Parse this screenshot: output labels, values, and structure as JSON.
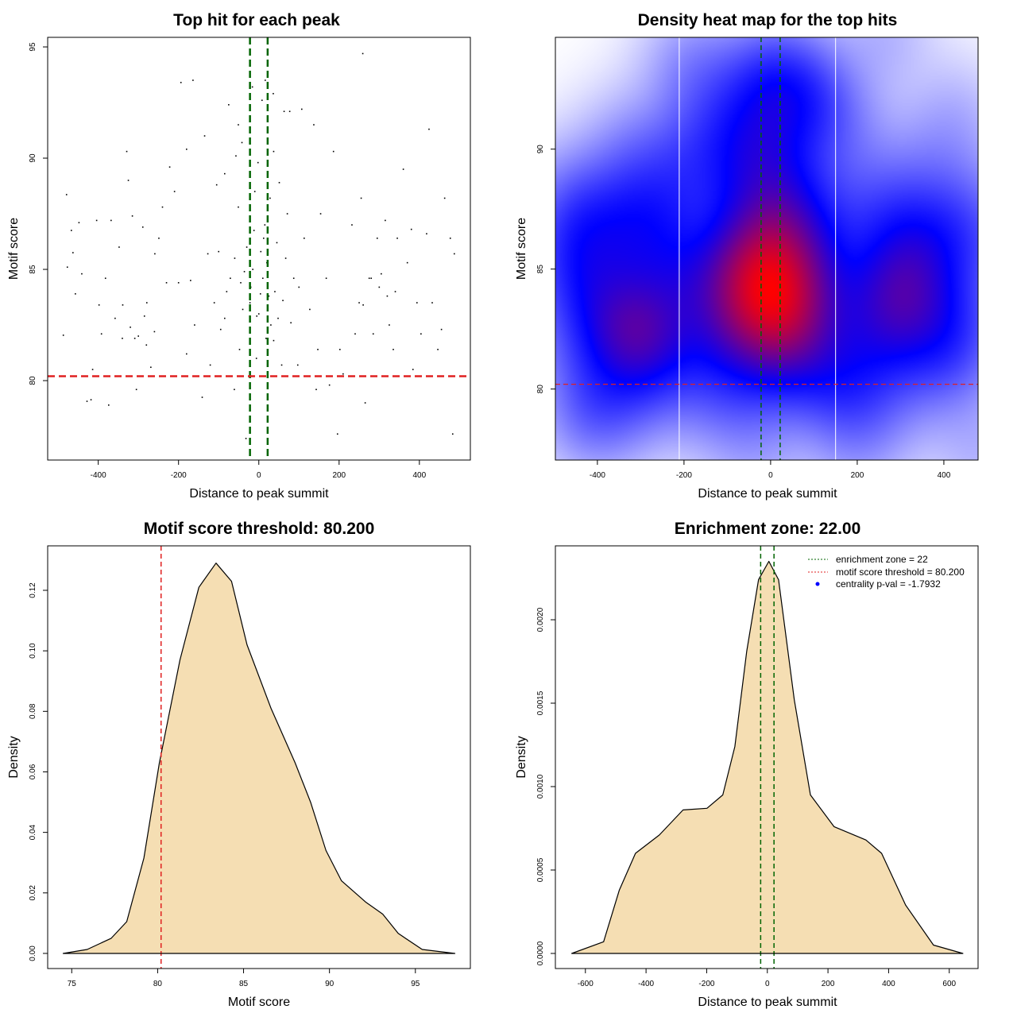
{
  "chart_data": [
    {
      "type": "scatter",
      "title": "Top hit for each peak",
      "xlabel": "Distance to peak summit",
      "ylabel": "Motif score",
      "xlim": [
        -526,
        527
      ],
      "ylim": [
        76.43,
        95.43
      ],
      "xticks": [
        -400,
        -200,
        0,
        200,
        400
      ],
      "yticks": [
        80,
        85,
        90,
        95
      ],
      "vlines": [
        -22,
        22
      ],
      "vline_color": "#006400",
      "hline": 80.2,
      "hline_color": "#e02020",
      "points": [
        [
          -479,
          88.36
        ],
        [
          -487,
          82.04
        ],
        [
          -477,
          85.1
        ],
        [
          -463,
          85.75
        ],
        [
          -467,
          86.75
        ],
        [
          -448,
          87.1
        ],
        [
          -457,
          83.9
        ],
        [
          -441,
          84.8
        ],
        [
          -428,
          79.07
        ],
        [
          -418,
          79.14
        ],
        [
          -414,
          80.5
        ],
        [
          -404,
          87.2
        ],
        [
          -398,
          83.4
        ],
        [
          -392,
          82.1
        ],
        [
          -382,
          84.6
        ],
        [
          -374,
          78.9
        ],
        [
          -368,
          87.2
        ],
        [
          -358,
          82.8
        ],
        [
          -339,
          83.4
        ],
        [
          -329,
          90.3
        ],
        [
          -325,
          89.0
        ],
        [
          -315,
          87.4
        ],
        [
          -309,
          81.9
        ],
        [
          -305,
          79.6
        ],
        [
          -289,
          86.9
        ],
        [
          -285,
          82.9
        ],
        [
          -279,
          83.5
        ],
        [
          -269,
          80.6
        ],
        [
          -259,
          85.7
        ],
        [
          -249,
          86.4
        ],
        [
          -240,
          87.8
        ],
        [
          -230,
          84.4
        ],
        [
          -222,
          89.6
        ],
        [
          -210,
          88.5
        ],
        [
          -200,
          84.4
        ],
        [
          -194,
          93.4
        ],
        [
          -164,
          93.5
        ],
        [
          -180,
          90.4
        ],
        [
          -170,
          84.5
        ],
        [
          -160,
          82.5
        ],
        [
          -141,
          79.25
        ],
        [
          -135,
          91.0
        ],
        [
          -127,
          85.7
        ],
        [
          -121,
          80.7
        ],
        [
          -111,
          83.5
        ],
        [
          -105,
          88.8
        ],
        [
          -95,
          82.3
        ],
        [
          -85,
          89.3
        ],
        [
          -75,
          92.4
        ],
        [
          -71,
          84.6
        ],
        [
          -61,
          79.6
        ],
        [
          -57,
          90.1
        ],
        [
          -51,
          91.5
        ],
        [
          -48,
          81.4
        ],
        [
          -42,
          90.7
        ],
        [
          -36,
          84.9
        ],
        [
          -32,
          77.4
        ],
        [
          -16,
          93.2
        ],
        [
          -12,
          86.75
        ],
        [
          -6,
          81.0
        ],
        [
          -2,
          89.8
        ],
        [
          4,
          83.9
        ],
        [
          8,
          92.6
        ],
        [
          12,
          86.4
        ],
        [
          16,
          93.5
        ],
        [
          20,
          85.3
        ],
        [
          28,
          88.2
        ],
        [
          36,
          92.9
        ],
        [
          37,
          90.3
        ],
        [
          48,
          82.8
        ],
        [
          57,
          80.7
        ],
        [
          63,
          92.1
        ],
        [
          71,
          87.5
        ],
        [
          77,
          92.1
        ],
        [
          87,
          84.6
        ],
        [
          97,
          80.7
        ],
        [
          107,
          92.2
        ],
        [
          113,
          86.4
        ],
        [
          127,
          83.2
        ],
        [
          137,
          91.5
        ],
        [
          143,
          79.6
        ],
        [
          154,
          87.5
        ],
        [
          168,
          84.6
        ],
        [
          176,
          79.8
        ],
        [
          186,
          90.3
        ],
        [
          196,
          77.6
        ],
        [
          202,
          81.4
        ],
        [
          210,
          80.3
        ],
        [
          232,
          87.0
        ],
        [
          240,
          82.1
        ],
        [
          250,
          83.5
        ],
        [
          259,
          94.7
        ],
        [
          255,
          88.2
        ],
        [
          265,
          79.0
        ],
        [
          275,
          84.6
        ],
        [
          285,
          82.1
        ],
        [
          295,
          86.4
        ],
        [
          305,
          84.8
        ],
        [
          315,
          87.2
        ],
        [
          325,
          82.5
        ],
        [
          335,
          81.4
        ],
        [
          345,
          86.4
        ],
        [
          360,
          89.5
        ],
        [
          370,
          85.3
        ],
        [
          380,
          86.8
        ],
        [
          384,
          80.5
        ],
        [
          394,
          83.5
        ],
        [
          404,
          82.1
        ],
        [
          418,
          86.6
        ],
        [
          424,
          91.3
        ],
        [
          432,
          83.5
        ],
        [
          446,
          81.4
        ],
        [
          455,
          82.3
        ],
        [
          463,
          88.2
        ],
        [
          477,
          86.4
        ],
        [
          487,
          85.7
        ],
        [
          483,
          77.6
        ],
        [
          37,
          81.8
        ],
        [
          -22,
          83.5
        ],
        [
          51,
          88.9
        ],
        [
          -51,
          87.8
        ],
        [
          -85,
          82.8
        ],
        [
          67,
          85.5
        ],
        [
          -180,
          81.2
        ],
        [
          -348,
          86.0
        ],
        [
          147,
          81.4
        ],
        [
          -20,
          84.2
        ],
        [
          25,
          83.8
        ],
        [
          10,
          84.6
        ],
        [
          -5,
          82.9
        ],
        [
          30,
          82.5
        ],
        [
          -30,
          86.0
        ],
        [
          15,
          87.0
        ],
        [
          -10,
          88.5
        ],
        [
          5,
          85.8
        ],
        [
          40,
          84.0
        ],
        [
          -40,
          83.2
        ],
        [
          0,
          83.0
        ],
        [
          18,
          81.9
        ],
        [
          -15,
          85.0
        ],
        [
          45,
          86.2
        ],
        [
          -45,
          84.4
        ],
        [
          60,
          83.6
        ],
        [
          -60,
          85.5
        ],
        [
          80,
          82.6
        ],
        [
          -80,
          84.0
        ],
        [
          100,
          84.2
        ],
        [
          -100,
          85.8
        ],
        [
          -300,
          82.0
        ],
        [
          -280,
          81.6
        ],
        [
          -320,
          82.4
        ],
        [
          -260,
          82.2
        ],
        [
          -340,
          81.9
        ],
        [
          300,
          84.2
        ],
        [
          320,
          83.8
        ],
        [
          280,
          84.6
        ],
        [
          340,
          84.0
        ],
        [
          260,
          83.4
        ]
      ]
    },
    {
      "type": "heatmap",
      "title": "Density heat map for the top hits",
      "xlabel": "Distance to peak summit",
      "ylabel": "Motif score",
      "xlim": [
        -497,
        479
      ],
      "ylim": [
        77.04,
        94.66
      ],
      "xticks": [
        -400,
        -200,
        0,
        200,
        400
      ],
      "yticks": [
        80,
        85,
        90
      ],
      "vlines": [
        -22,
        22
      ],
      "vline_color": "#006400",
      "white_vlines": [
        -211,
        150
      ],
      "hline": 80.2,
      "hline_color": "#e02020",
      "colorscale": [
        "#ffffff",
        "#0000ff",
        "#ff0000"
      ]
    },
    {
      "type": "area",
      "title": "Motif score threshold: 80.200",
      "xlabel": "Motif score",
      "ylabel": "Density",
      "xlim": [
        73.6,
        98.2
      ],
      "ylim": [
        -0.005,
        0.1347
      ],
      "xticks": [
        75,
        80,
        85,
        90,
        95
      ],
      "yticks": [
        0.0,
        0.02,
        0.04,
        0.06,
        0.08,
        0.1,
        0.12
      ],
      "ytick_labels": [
        "0.00",
        "0.02",
        "0.04",
        "0.06",
        "0.08",
        "0.10",
        "0.12"
      ],
      "fill": "#f5deb3",
      "vlines": [
        80.2
      ],
      "vline_color": "#e02020",
      "x": [
        74.5,
        75.9,
        77.3,
        78.2,
        79.2,
        80.1,
        81.3,
        82.4,
        83.4,
        84.3,
        85.2,
        86.6,
        88.0,
        88.9,
        89.8,
        90.7,
        92.1,
        93.1,
        94.0,
        95.4,
        97.3
      ],
      "y": [
        0,
        0.0013,
        0.005,
        0.0105,
        0.0315,
        0.063,
        0.097,
        0.121,
        0.129,
        0.123,
        0.102,
        0.081,
        0.063,
        0.05,
        0.034,
        0.024,
        0.017,
        0.013,
        0.0066,
        0.0013,
        0
      ]
    },
    {
      "type": "area",
      "title": "Enrichment zone: 22.00",
      "xlabel": "Distance to peak summit",
      "ylabel": "Density",
      "xlim": [
        -699,
        695
      ],
      "ylim": [
        -9.05e-05,
        0.002443
      ],
      "xticks": [
        -600,
        -400,
        -200,
        0,
        200,
        400,
        600
      ],
      "yticks": [
        0.0,
        0.0005,
        0.001,
        0.0015,
        0.002
      ],
      "ytick_labels": [
        "0.0000",
        "0.0005",
        "0.0010",
        "0.0015",
        "0.0020"
      ],
      "fill": "#f5deb3",
      "vlines": [
        -22,
        22
      ],
      "vline_color": "#006400",
      "x": [
        -645,
        -540,
        -488,
        -435,
        -356,
        -278,
        -199,
        -147,
        -107,
        -68,
        -29,
        5,
        37,
        89,
        142,
        220,
        325,
        377,
        456,
        548,
        645
      ],
      "y": [
        0,
        7e-05,
        0.00038,
        0.0006,
        0.00071,
        0.00086,
        0.00087,
        0.00095,
        0.00124,
        0.00181,
        0.00224,
        0.00235,
        0.00224,
        0.00152,
        0.00095,
        0.00076,
        0.00068,
        0.0006,
        0.00029,
        5e-05,
        0
      ],
      "legend": {
        "placement": "top-right",
        "entries": [
          {
            "label": "enrichment zone = 22",
            "color": "#006400",
            "style": "dotted"
          },
          {
            "label": "motif score threshold = 80.200",
            "color": "#e02020",
            "style": "dotted"
          },
          {
            "label": "centrality p-val = -1.7932",
            "color": "#0000ff",
            "style": "point"
          }
        ]
      }
    }
  ]
}
